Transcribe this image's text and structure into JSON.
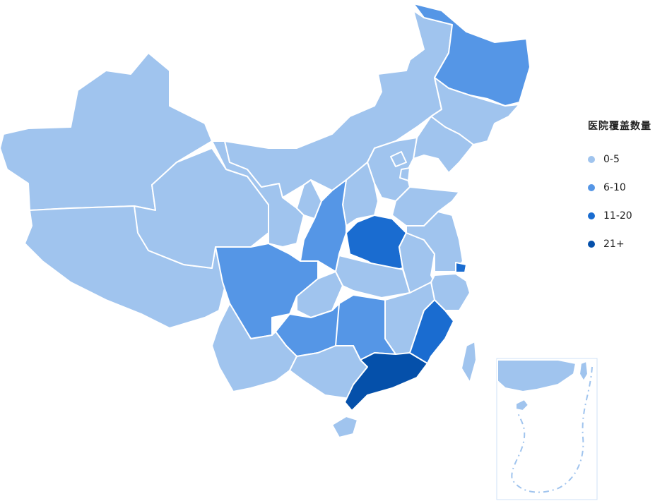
{
  "legend": {
    "title": "医院覆盖数量",
    "items": [
      {
        "label": "0-5",
        "color": "#A0C4EE"
      },
      {
        "label": "6-10",
        "color": "#5596E6"
      },
      {
        "label": "11-20",
        "color": "#1A6CD0"
      },
      {
        "label": "21+",
        "color": "#0550AA"
      }
    ]
  },
  "regions": {
    "xinjiang": 0,
    "tibet": 0,
    "qinghai": 0,
    "gansu": 0,
    "inner_mongolia": 0,
    "heilongjiang": 1,
    "jilin": 0,
    "liaoning": 0,
    "hebei": 0,
    "beijing": 0,
    "tianjin": 0,
    "shanxi": 0,
    "shandong": 0,
    "henan": 2,
    "shaanxi": 1,
    "ningxia": 0,
    "sichuan": 1,
    "chongqing": 0,
    "hubei": 0,
    "anhui": 0,
    "jiangsu": 0,
    "shanghai": 2,
    "zhejiang": 0,
    "jiangxi": 0,
    "hunan": 1,
    "guizhou": 1,
    "yunnan": 0,
    "guangxi": 0,
    "guangdong": 3,
    "fujian": 2,
    "taiwan": 0,
    "hainan": 0
  }
}
